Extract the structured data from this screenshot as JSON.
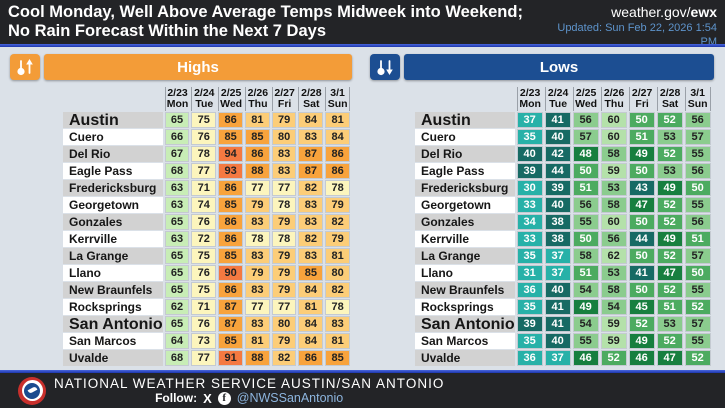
{
  "header": {
    "title": "Cool Monday, Well Above Average Temps Midweek into Weekend; No Rain Forecast Within the Next 7 Days",
    "site": "weather.gov/",
    "site_bold": "ewx",
    "updated": "Updated: Sun Feb 22, 2026 1:54 PM"
  },
  "accent_colors": {
    "highs_bar": "#f39c38",
    "lows_bar": "#1c4e92",
    "header_bg": "#232427",
    "rule_blue": "#2846c0",
    "page_bg": "#dbe1e8"
  },
  "chart_data": [
    {
      "type": "heatmap",
      "title": "Highs",
      "columns": [
        {
          "date": "2/23",
          "day": "Mon"
        },
        {
          "date": "2/24",
          "day": "Tue"
        },
        {
          "date": "2/25",
          "day": "Wed"
        },
        {
          "date": "2/26",
          "day": "Thu"
        },
        {
          "date": "2/27",
          "day": "Fri"
        },
        {
          "date": "2/28",
          "day": "Sat"
        },
        {
          "date": "3/1",
          "day": "Sun"
        }
      ],
      "rows": [
        {
          "city": "Austin",
          "major": true,
          "values": [
            65,
            75,
            86,
            81,
            79,
            84,
            81
          ]
        },
        {
          "city": "Cuero",
          "values": [
            66,
            76,
            85,
            85,
            80,
            83,
            84
          ]
        },
        {
          "city": "Del Rio",
          "values": [
            67,
            78,
            94,
            86,
            83,
            87,
            86
          ]
        },
        {
          "city": "Eagle Pass",
          "values": [
            68,
            77,
            93,
            88,
            83,
            87,
            86
          ]
        },
        {
          "city": "Fredericksburg",
          "values": [
            63,
            71,
            86,
            77,
            77,
            82,
            78
          ]
        },
        {
          "city": "Georgetown",
          "values": [
            63,
            74,
            85,
            79,
            78,
            83,
            79
          ]
        },
        {
          "city": "Gonzales",
          "values": [
            65,
            76,
            86,
            83,
            79,
            83,
            82
          ]
        },
        {
          "city": "Kerrville",
          "values": [
            63,
            72,
            86,
            78,
            78,
            82,
            79
          ]
        },
        {
          "city": "La Grange",
          "values": [
            65,
            75,
            85,
            83,
            79,
            83,
            81
          ]
        },
        {
          "city": "Llano",
          "values": [
            65,
            76,
            90,
            79,
            79,
            85,
            80
          ]
        },
        {
          "city": "New Braunfels",
          "values": [
            65,
            75,
            86,
            83,
            79,
            84,
            82
          ]
        },
        {
          "city": "Rocksprings",
          "values": [
            62,
            71,
            87,
            77,
            77,
            81,
            78
          ]
        },
        {
          "city": "San Antonio",
          "major": true,
          "values": [
            65,
            76,
            87,
            83,
            80,
            84,
            83
          ]
        },
        {
          "city": "San Marcos",
          "values": [
            64,
            73,
            85,
            81,
            79,
            84,
            81
          ]
        },
        {
          "city": "Uvalde",
          "values": [
            68,
            77,
            91,
            88,
            82,
            86,
            85
          ]
        }
      ],
      "scale": [
        {
          "max": 69,
          "bg": "#c8edb6",
          "fg": "#222"
        },
        {
          "max": 78,
          "bg": "#fcf5bd",
          "fg": "#222"
        },
        {
          "max": 84,
          "bg": "#fccd78",
          "fg": "#222"
        },
        {
          "max": 89,
          "bg": "#f8a33c",
          "fg": "#222"
        },
        {
          "max": 200,
          "bg": "#f47941",
          "fg": "#222"
        }
      ]
    },
    {
      "type": "heatmap",
      "title": "Lows",
      "columns": [
        {
          "date": "2/23",
          "day": "Mon"
        },
        {
          "date": "2/24",
          "day": "Tue"
        },
        {
          "date": "2/25",
          "day": "Wed"
        },
        {
          "date": "2/26",
          "day": "Thu"
        },
        {
          "date": "2/27",
          "day": "Fri"
        },
        {
          "date": "2/28",
          "day": "Sat"
        },
        {
          "date": "3/1",
          "day": "Sun"
        }
      ],
      "rows": [
        {
          "city": "Austin",
          "major": true,
          "values": [
            37,
            41,
            56,
            60,
            50,
            52,
            56
          ]
        },
        {
          "city": "Cuero",
          "values": [
            35,
            40,
            57,
            60,
            51,
            53,
            57
          ]
        },
        {
          "city": "Del Rio",
          "values": [
            40,
            42,
            48,
            58,
            49,
            52,
            55
          ]
        },
        {
          "city": "Eagle Pass",
          "values": [
            39,
            44,
            50,
            59,
            50,
            53,
            56
          ]
        },
        {
          "city": "Fredericksburg",
          "values": [
            30,
            39,
            51,
            53,
            43,
            49,
            50
          ]
        },
        {
          "city": "Georgetown",
          "values": [
            33,
            40,
            56,
            58,
            47,
            52,
            55
          ]
        },
        {
          "city": "Gonzales",
          "values": [
            34,
            38,
            55,
            60,
            50,
            52,
            56
          ]
        },
        {
          "city": "Kerrville",
          "values": [
            33,
            38,
            50,
            56,
            44,
            49,
            51
          ]
        },
        {
          "city": "La Grange",
          "values": [
            35,
            37,
            58,
            62,
            50,
            52,
            57
          ]
        },
        {
          "city": "Llano",
          "values": [
            31,
            37,
            51,
            53,
            41,
            47,
            50
          ]
        },
        {
          "city": "New Braunfels",
          "values": [
            36,
            40,
            54,
            58,
            50,
            52,
            55
          ]
        },
        {
          "city": "Rocksprings",
          "values": [
            35,
            41,
            49,
            54,
            45,
            51,
            52
          ]
        },
        {
          "city": "San Antonio",
          "major": true,
          "values": [
            39,
            41,
            54,
            59,
            52,
            53,
            57
          ]
        },
        {
          "city": "San Marcos",
          "values": [
            35,
            40,
            55,
            59,
            49,
            52,
            55
          ]
        },
        {
          "city": "Uvalde",
          "values": [
            36,
            37,
            46,
            52,
            46,
            47,
            52
          ]
        }
      ],
      "scale": [
        {
          "max": 37,
          "bg": "#27b1a8",
          "fg": "#ffffff"
        },
        {
          "max": 44,
          "bg": "#176a64",
          "fg": "#ffffff"
        },
        {
          "max": 49,
          "bg": "#177f3f",
          "fg": "#ffffff"
        },
        {
          "max": 52,
          "bg": "#4cab60",
          "fg": "#ffffff"
        },
        {
          "max": 58,
          "bg": "#8bcc8e",
          "fg": "#222222"
        },
        {
          "max": 100,
          "bg": "#b4e1aa",
          "fg": "#222222"
        }
      ]
    }
  ],
  "footer": {
    "org": "NATIONAL WEATHER SERVICE AUSTIN/SAN ANTONIO",
    "follow_label": "Follow:",
    "x_glyph": "X",
    "fb_glyph": "f",
    "handle": "@NWSSanAntonio"
  }
}
